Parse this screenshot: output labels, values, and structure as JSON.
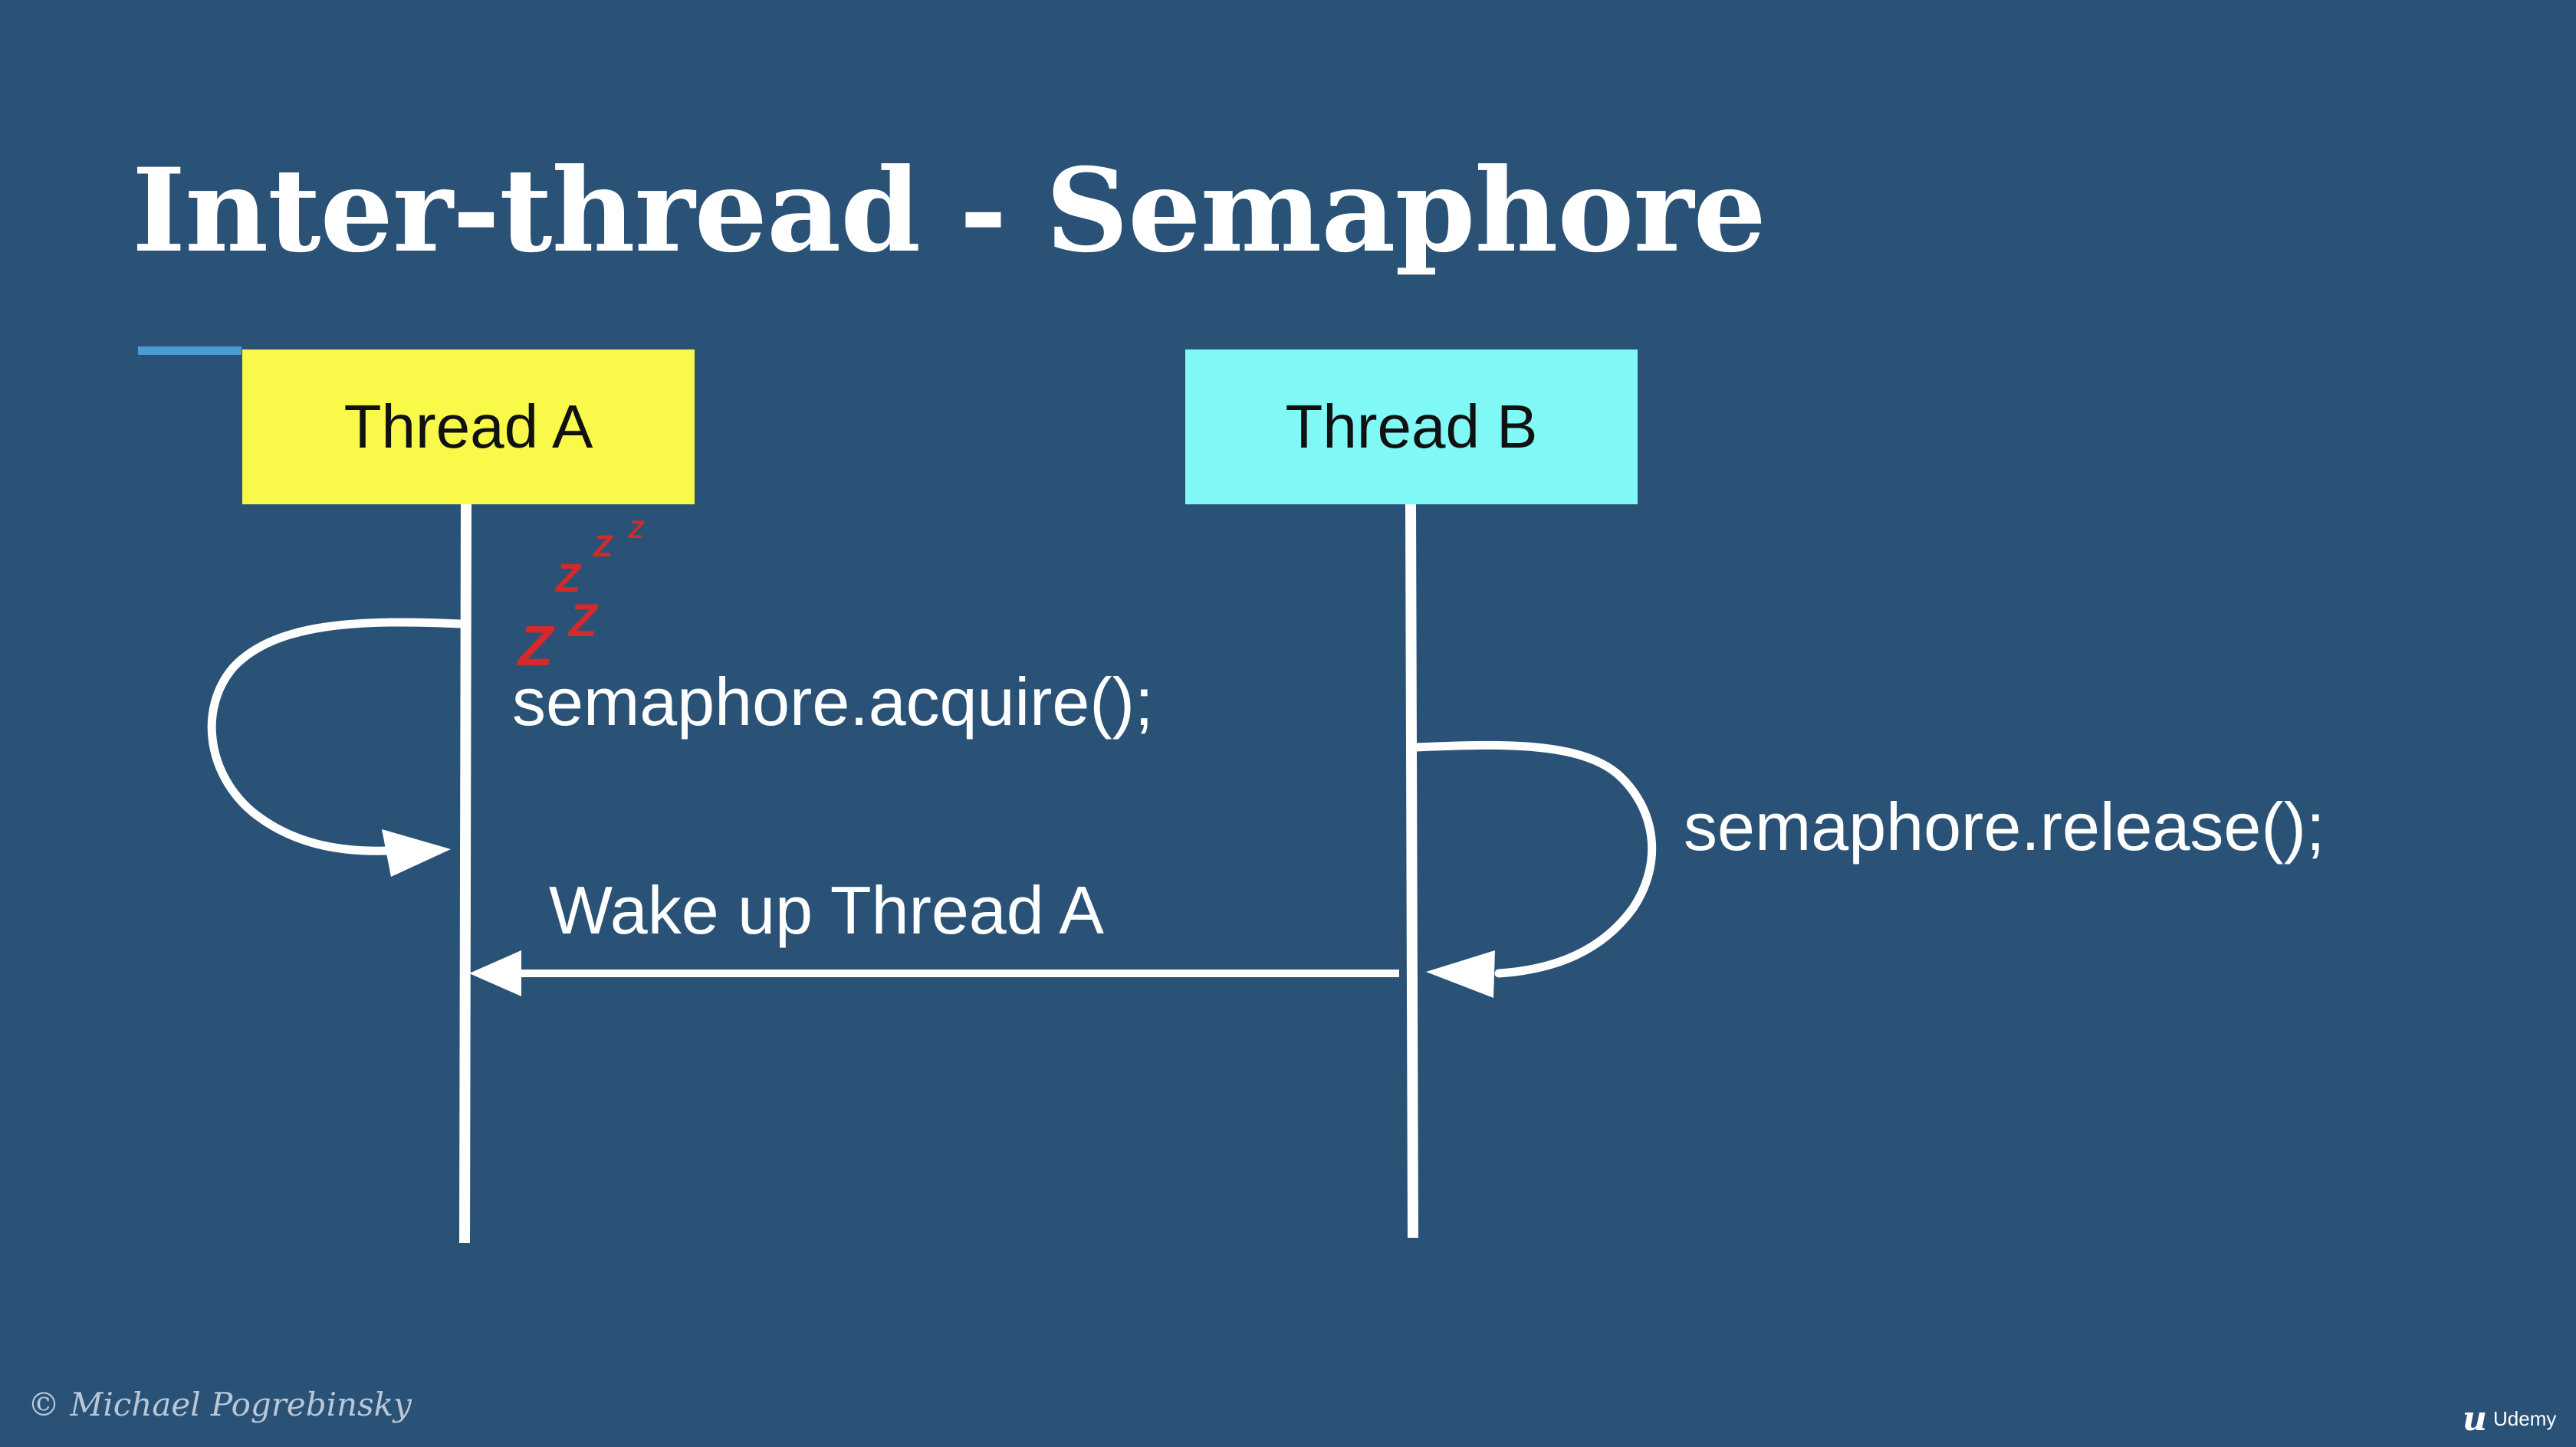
{
  "slide": {
    "title": "Inter-thread - Semaphore",
    "copyright": "© Michael Pogrebinsky",
    "brand": "Udemy",
    "brand_mark": "u"
  },
  "threads": [
    {
      "label": "Thread A",
      "color": "#f9f94a"
    },
    {
      "label": "Thread B",
      "color": "#7ff8f6"
    }
  ],
  "calls": {
    "acquire": "semaphore.acquire();",
    "release": "semaphore.release();",
    "wake": "Wake up Thread A"
  },
  "colors": {
    "background": "#2a5277",
    "accent": "#4a9bd6",
    "lines": "#ffffff",
    "sleep_z": "#d42a2a"
  },
  "icons": [
    "sleep-zzz-icon",
    "udemy-logo-icon"
  ]
}
